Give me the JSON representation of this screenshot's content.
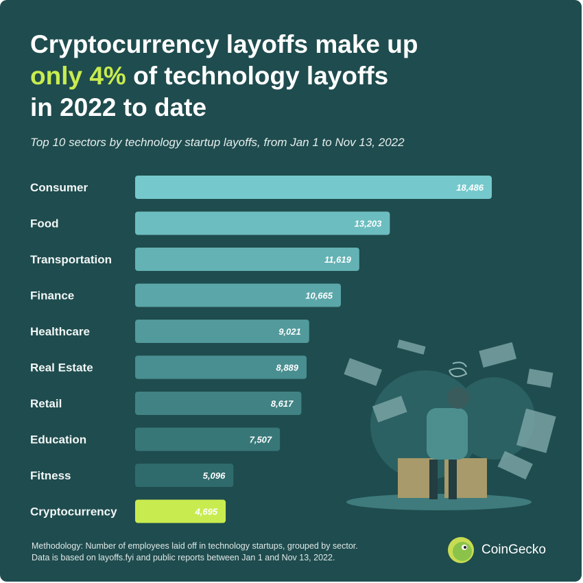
{
  "title": {
    "line1": "Cryptocurrency layoffs make up",
    "highlight": "only 4%",
    "line2_rest": " of technology layoffs",
    "line3": "in 2022 to date"
  },
  "subtitle": "Top 10 sectors by technology startup layoffs, from Jan 1 to Nov 13, 2022",
  "footer": {
    "methodology_line1": "Methodology: Number of employees laid off in technology startups, grouped by sector.",
    "methodology_line2": "Data is based on layoffs.fyi and public reports between Jan 1 and Nov 13, 2022.",
    "brand": "CoinGecko"
  },
  "colors": {
    "background": "#1f4c4e",
    "highlight": "#c8ec4f",
    "bar_top": "#75c9cc",
    "bar_bottom": "#2f6b6c"
  },
  "chart_data": {
    "type": "bar",
    "orientation": "horizontal",
    "categories": [
      "Consumer",
      "Food",
      "Transportation",
      "Finance",
      "Healthcare",
      "Real Estate",
      "Retail",
      "Education",
      "Fitness",
      "Cryptocurrency"
    ],
    "values": [
      18486,
      13203,
      11619,
      10665,
      9021,
      8889,
      8617,
      7507,
      5096,
      4695
    ],
    "value_labels": [
      "18,486",
      "13,203",
      "11,619",
      "10,665",
      "9,021",
      "8,889",
      "8,617",
      "7,507",
      "5,096",
      "4,695"
    ],
    "highlighted_category": "Cryptocurrency",
    "grid": false
  }
}
